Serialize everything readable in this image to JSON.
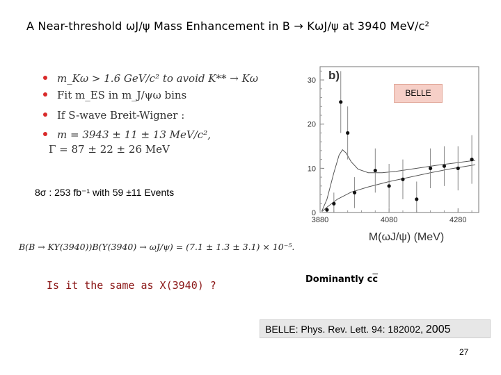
{
  "slide": {
    "title": "A Near-threshold ωJ/ψ Mass Enhancement in B → KωJ/ψ at 3940 MeV/c²",
    "bullets": [
      "m_Kω > 1.6 GeV/c² to avoid K** → Kω",
      "Fit m_ES in m_J/ψω bins",
      "If S-wave Breit-Wigner :",
      "m = 3943 ± 11 ± 13 MeV/c²,",
      "Γ = 87 ± 22 ± 26 MeV"
    ],
    "significance": "8σ :  253 fb⁻¹ with 59 ±11 Events",
    "branching_fraction": "B(B → KY(3940))B(Y(3940) → ωJ/ψ) = (7.1 ± 1.3 ± 3.1) × 10⁻⁵.",
    "question": "Is it the same as X(3940) ?",
    "dominant": "Dominantly cc",
    "reference": "BELLE: Phys. Rev. Lett. 94: 182002,",
    "reference_year": "2005",
    "page_number": "27",
    "colors": {
      "title": "#000000",
      "question": "#8a1414",
      "bullet_dot": "#d92a2a",
      "reference_bg": "#e7e7e7",
      "belle_box": "#f6cfc7"
    }
  },
  "chart_data": {
    "type": "scatter",
    "title": "",
    "panel_label": "b)",
    "legend_box": "BELLE",
    "xlabel": "M(ωJ/ψ) (MeV)",
    "ylabel": "",
    "xlim": [
      3880,
      4340
    ],
    "ylim": [
      0,
      33
    ],
    "x_ticks": [
      "3880",
      "4080",
      "4280"
    ],
    "y_ticks": [
      "0",
      "10",
      "20",
      "30"
    ],
    "grid": false,
    "series": [
      {
        "points": [
          {
            "x": 3900,
            "y": 0.6,
            "err": 0.6
          },
          {
            "x": 3920,
            "y": 2.0,
            "err": 2.5
          },
          {
            "x": 3940,
            "y": 25.0,
            "err": 7
          },
          {
            "x": 3960,
            "y": 18.0,
            "err": 6
          },
          {
            "x": 3980,
            "y": 4.5,
            "err": 3.5
          },
          {
            "x": 4040,
            "y": 9.5,
            "err": 5
          },
          {
            "x": 4080,
            "y": 6.0,
            "err": 5
          },
          {
            "x": 4120,
            "y": 7.5,
            "err": 4.5
          },
          {
            "x": 4160,
            "y": 3.0,
            "err": 4
          },
          {
            "x": 4200,
            "y": 10.0,
            "err": 4.5
          },
          {
            "x": 4240,
            "y": 10.5,
            "err": 4.5
          },
          {
            "x": 4280,
            "y": 10.0,
            "err": 5
          },
          {
            "x": 4320,
            "y": 12.0,
            "err": 5.5
          }
        ]
      }
    ],
    "curves": [
      {
        "x": [
          3885,
          3900,
          3920,
          3935,
          3945,
          3955,
          3970,
          3990,
          4020,
          4060,
          4100,
          4160,
          4220,
          4280,
          4330
        ],
        "y": [
          0.3,
          3,
          9,
          13,
          14.2,
          13.5,
          11.5,
          9.8,
          9.0,
          9.0,
          9.3,
          10.0,
          10.7,
          11.3,
          11.8
        ]
      },
      {
        "x": [
          3885,
          3900,
          3930,
          3970,
          4020,
          4080,
          4140,
          4200,
          4260,
          4330
        ],
        "y": [
          0.2,
          1.2,
          3.0,
          4.6,
          5.8,
          7.0,
          8.0,
          9.0,
          9.9,
          10.8
        ]
      }
    ]
  }
}
